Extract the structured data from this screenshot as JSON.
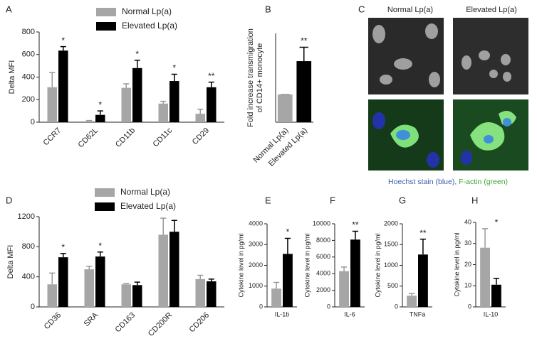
{
  "chart_data": [
    {
      "panel": "A",
      "type": "bar",
      "ylabel": "Delta MFI",
      "categories": [
        "CCR7",
        "CD62L",
        "CD11b",
        "CD11c",
        "CD29"
      ],
      "series": [
        {
          "name": "Normal Lp(a)",
          "color": "#a6a6a6",
          "values": [
            310,
            10,
            305,
            165,
            75
          ],
          "errors": [
            130,
            5,
            35,
            20,
            40
          ]
        },
        {
          "name": "Elevated Lp(a)",
          "color": "#000000",
          "values": [
            635,
            65,
            480,
            365,
            310
          ],
          "errors": [
            35,
            35,
            70,
            60,
            45
          ]
        }
      ],
      "annotations": [
        "*",
        "*",
        "*",
        "*",
        "**"
      ],
      "ylim": [
        0,
        800
      ],
      "yticks": [
        0,
        200,
        400,
        600,
        800
      ],
      "legend": "top"
    },
    {
      "panel": "B",
      "type": "bar",
      "ylabel": [
        "Fold increase transmigration",
        "of CD14+ monocyte"
      ],
      "categories": [
        "Normal Lp(a)",
        "Elevated Lp(a)"
      ],
      "values": [
        1,
        2.2
      ],
      "errors": [
        0,
        0.5
      ],
      "colors": [
        "#a6a6a6",
        "#000000"
      ],
      "annotations": [
        null,
        "**"
      ],
      "ylim": [
        0,
        3.2
      ]
    },
    {
      "panel": "C",
      "type": "image",
      "labels": [
        "Normal Lp(a)",
        "Elevated Lp(a)"
      ],
      "caption": [
        {
          "text": "Hoechst stain (blue)",
          "color": "#3b5fb0"
        },
        {
          "text": ", ",
          "color": "#555555"
        },
        {
          "text": "F-actin (green)",
          "color": "#3aa83a"
        }
      ]
    },
    {
      "panel": "D",
      "type": "bar",
      "ylabel": "Delta MFI",
      "categories": [
        "CD36",
        "SRA",
        "CD163",
        "CD200R",
        "CD206"
      ],
      "series": [
        {
          "name": "Normal Lp(a)",
          "color": "#a6a6a6",
          "values": [
            300,
            500,
            300,
            960,
            370
          ],
          "errors": [
            150,
            40,
            10,
            220,
            50
          ]
        },
        {
          "name": "Elevated Lp(a)",
          "color": "#000000",
          "values": [
            660,
            670,
            290,
            1000,
            340
          ],
          "errors": [
            50,
            60,
            40,
            150,
            30
          ]
        }
      ],
      "annotations": [
        "*",
        "*",
        null,
        null,
        null
      ],
      "ylim": [
        0,
        1200
      ],
      "yticks": [
        0,
        400,
        800,
        1200
      ],
      "legend": "top"
    },
    {
      "panel": "E",
      "type": "bar",
      "ylabel": "Cytokine level in pg/ml",
      "categories": [
        "IL-1b"
      ],
      "series": [
        {
          "color": "#a6a6a6",
          "values": [
            880
          ],
          "errors": [
            300
          ]
        },
        {
          "color": "#000000",
          "values": [
            2550
          ],
          "errors": [
            750
          ]
        }
      ],
      "annotations": [
        "*"
      ],
      "ylim": [
        0,
        4000
      ],
      "yticks": [
        0,
        1000,
        2000,
        3000,
        4000
      ]
    },
    {
      "panel": "F",
      "type": "bar",
      "ylabel": "Cytokine level in pg/ml",
      "categories": [
        "IL-6"
      ],
      "series": [
        {
          "color": "#a6a6a6",
          "values": [
            4300
          ],
          "errors": [
            500
          ]
        },
        {
          "color": "#000000",
          "values": [
            8100
          ],
          "errors": [
            1000
          ]
        }
      ],
      "annotations": [
        "**"
      ],
      "ylim": [
        0,
        10000
      ],
      "yticks": [
        0,
        2000,
        4000,
        6000,
        8000,
        10000
      ]
    },
    {
      "panel": "G",
      "type": "bar",
      "ylabel": "Cytokine level in pg/ml",
      "categories": [
        "TNFa"
      ],
      "series": [
        {
          "color": "#a6a6a6",
          "values": [
            270
          ],
          "errors": [
            50
          ]
        },
        {
          "color": "#000000",
          "values": [
            1260
          ],
          "errors": [
            370
          ]
        }
      ],
      "annotations": [
        "**"
      ],
      "ylim": [
        0,
        2000
      ],
      "yticks": [
        0,
        500,
        1000,
        1500,
        2000
      ]
    },
    {
      "panel": "H",
      "type": "bar",
      "ylabel": "Cytokine level in pg/ml",
      "categories": [
        "IL-10"
      ],
      "series": [
        {
          "color": "#a6a6a6",
          "values": [
            28
          ],
          "errors": [
            9
          ]
        },
        {
          "color": "#000000",
          "values": [
            10.5
          ],
          "errors": [
            3
          ]
        }
      ],
      "annotations": [
        "*"
      ],
      "ylim": [
        0,
        40
      ],
      "yticks": [
        0,
        10,
        20,
        30,
        40
      ]
    }
  ]
}
